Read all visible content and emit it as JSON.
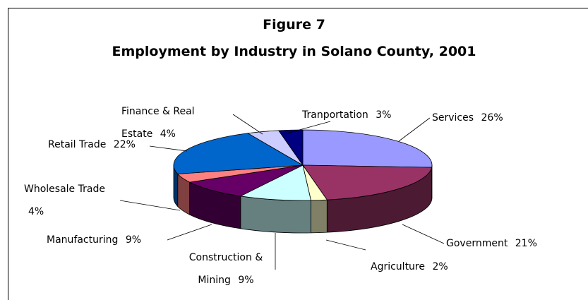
{
  "chart_data": {
    "type": "pie3d",
    "title": "Figure 7",
    "subtitle": "Employment by Industry in Solano County, 2001",
    "categories": [
      "Services",
      "Government",
      "Agriculture",
      "Construction & Mining",
      "Manufacturing",
      "Wholesale Trade",
      "Retail Trade",
      "Finance & Real Estate",
      "Tranportation"
    ],
    "values": [
      26,
      21,
      2,
      9,
      9,
      4,
      22,
      4,
      3
    ],
    "value_labels": [
      "26%",
      "21%",
      "2%",
      "9%",
      "9%",
      "4%",
      "22%",
      "4%",
      "3%"
    ],
    "colors": [
      "#9999ff",
      "#993366",
      "#ffffcc",
      "#ccffff",
      "#660066",
      "#ff8080",
      "#0066cc",
      "#ccccff",
      "#000080"
    ]
  }
}
